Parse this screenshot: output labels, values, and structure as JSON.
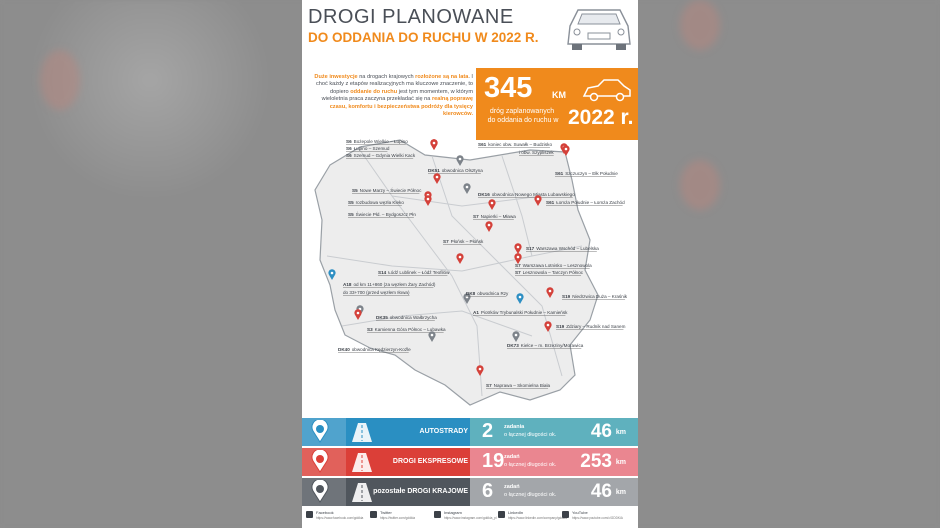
{
  "header": {
    "title": "DROGI PLANOWANE",
    "subtitle": "DO ODDANIA DO RUCHU W 2022 R."
  },
  "intro": [
    {
      "text": "Duże inwestycje",
      "highlight": true
    },
    {
      "text": " na drogach krajowych ",
      "highlight": false
    },
    {
      "text": "rozłożone są na lata",
      "highlight": true
    },
    {
      "text": ". I choć każdy z etapów realizacyjnych ma kluczowe znaczenie, to dopiero ",
      "highlight": false
    },
    {
      "text": "oddanie do ruchu",
      "highlight": true
    },
    {
      "text": " jest tym momentem, w którym wieloletnia praca zaczyna przekładać się na ",
      "highlight": false
    },
    {
      "text": "realną poprawę czasu, komfortu i bezpieczeństwa podróży dla tysięcy kierowców.",
      "highlight": true
    }
  ],
  "stat": {
    "value": "345",
    "unit": "KM",
    "text_line1": "dróg zaplanowanych",
    "text_line2": "do oddania do ruchu w",
    "year": "2022 r."
  },
  "map_labels": [
    {
      "road": "S6",
      "desc": "Bożepole Wielkie – Łupino",
      "pin": "red"
    },
    {
      "road": "S6",
      "desc": "Łupino – Szemud",
      "pin": "red"
    },
    {
      "road": "S6",
      "desc": "Szemud – Gdynia Wielki Kack",
      "pin": "red"
    },
    {
      "road": "S61",
      "desc": "koniec obw. Suwałk – Budzisko",
      "pin": "red"
    },
    {
      "road": "",
      "desc": "i obw. Szypliszek",
      "pin": ""
    },
    {
      "road": "DK51",
      "desc": "obwodnica Olsztyna",
      "pin": "gray"
    },
    {
      "road": "S61",
      "desc": "Szczuczyn – Ełk Południe",
      "pin": "red"
    },
    {
      "road": "S5",
      "desc": "Nowe Marzy – Świecie Północ",
      "pin": "red"
    },
    {
      "road": "DK16",
      "desc": "obwodnica Nowego Miasta Lubawskiego",
      "pin": "gray"
    },
    {
      "road": "S5",
      "desc": "rozbudowa węzła Kleko",
      "pin": "red"
    },
    {
      "road": "S61",
      "desc": "Łomża Południe – Łomża Zachód",
      "pin": "red"
    },
    {
      "road": "S5",
      "desc": "Świecie Płd. – Bydgoszcz Płn",
      "pin": "red"
    },
    {
      "road": "S7",
      "desc": "Napierki – Mława",
      "pin": "red"
    },
    {
      "road": "S7",
      "desc": "Płońsk – Płońsk",
      "pin": "red"
    },
    {
      "road": "S17",
      "desc": "Warszawa Wschód – Lubelska",
      "pin": "red"
    },
    {
      "road": "S7",
      "desc": "Warszawa Lotnisko – Lesznowola",
      "pin": "red"
    },
    {
      "road": "S7",
      "desc": "Lesznowola – Tarczyn Północ",
      "pin": "red"
    },
    {
      "road": "S14",
      "desc": "Łódź Lublinek – Łódź Teofilów",
      "pin": "red"
    },
    {
      "road": "A18",
      "desc": "od km 11+860 (za węzłem Żary Zachód)",
      "pin": "blue"
    },
    {
      "road": "",
      "desc": "do 33+700 (przed węzłem Iłowa)",
      "pin": ""
    },
    {
      "road": "DK8",
      "desc": "obwodnica Rzy",
      "pin": "gray"
    },
    {
      "road": "S19",
      "desc": "Niedrzwica Duża – Kraśnik",
      "pin": "red"
    },
    {
      "road": "A1",
      "desc": "Piotrków Trybunalski Południe – Kamieńsk",
      "pin": "blue"
    },
    {
      "road": "DK35",
      "desc": "obwodnica Wałbrzycha",
      "pin": "gray"
    },
    {
      "road": "S19",
      "desc": "Zdziary – Rudnik nad Sanem",
      "pin": "red"
    },
    {
      "road": "S3",
      "desc": "Kamienna Góra Północ – Lubawka",
      "pin": "red"
    },
    {
      "road": "DK73",
      "desc": "Kielce – m. Brzeziny/Morawica",
      "pin": "gray"
    },
    {
      "road": "DK40",
      "desc": "obwodnica Kędzierzyn-Koźle",
      "pin": "gray"
    },
    {
      "road": "S7",
      "desc": "Naprawa – Skomielna Biała",
      "pin": "red"
    }
  ],
  "summary": [
    {
      "label": "AUTOSTRADY",
      "count": "2",
      "count_text1": "zadania",
      "count_text2": "o łącznej długości ok.",
      "length": "46",
      "unit": "km",
      "color": "#2a8fc2",
      "light": "#5fb1be"
    },
    {
      "label": "DROGI EKSPRESOWE",
      "count": "19",
      "count_text1": "zadań",
      "count_text2": "o łącznej długości ok.",
      "length": "253",
      "unit": "km",
      "color": "#db3f38",
      "light": "#ea8690"
    },
    {
      "label": "pozostałe DROGI KRAJOWE",
      "count": "6",
      "count_text1": "zadań",
      "count_text2": "o łącznej długości ok.",
      "length": "46",
      "unit": "km",
      "color": "#50565d",
      "light": "#a3a6aa"
    }
  ],
  "footer": [
    {
      "name": "Facebook",
      "url": "https://www.facebook.com/gddkia"
    },
    {
      "name": "Twitter",
      "url": "https://twitter.com/gddkia"
    },
    {
      "name": "Instagram",
      "url": "https://www.instagram.com/gddkia_pl"
    },
    {
      "name": "LinkedIn",
      "url": "https://www.linkedin.com/company/gddkia"
    },
    {
      "name": "YouTube",
      "url": "https://www.youtube.com/c/GDDKiA"
    }
  ]
}
